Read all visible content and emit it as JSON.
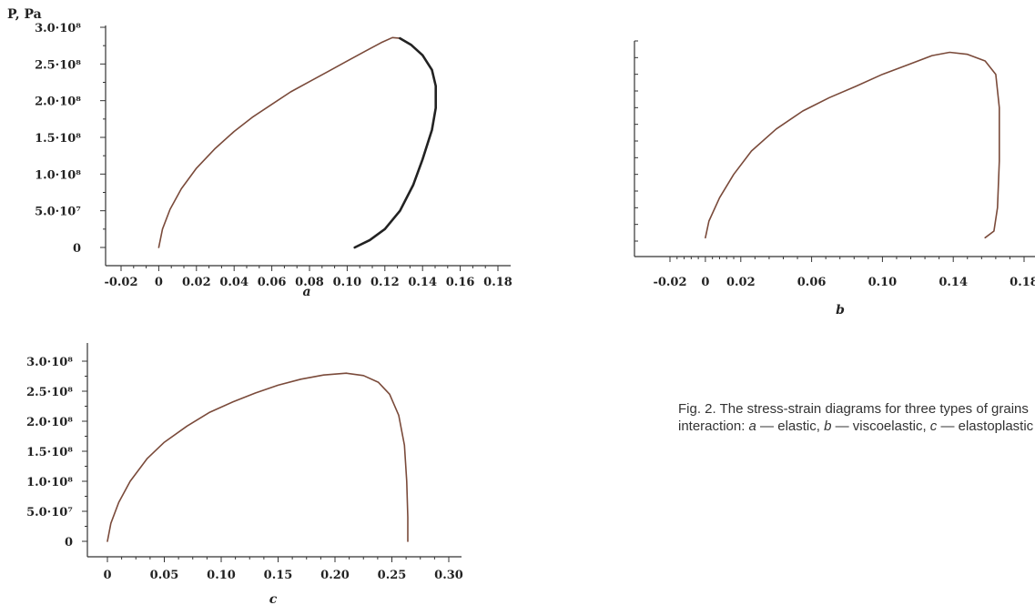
{
  "caption": {
    "line1": "Fig. 2. The stress-strain diagrams for three types of grains",
    "line2_prefix": "interaction: ",
    "a_letter": "a",
    "a_text": " — elastic, ",
    "b_letter": "b",
    "b_text": " — viscoelastic, ",
    "c_letter": "c",
    "c_text": " — elastoplastic"
  },
  "chart_data": [
    {
      "type": "line",
      "panel_label": "a",
      "ylabel": "P, Pa",
      "xlim": [
        -0.02,
        0.18
      ],
      "ylim": [
        0,
        300000000
      ],
      "xticks": [
        -0.02,
        0,
        0.02,
        0.04,
        0.06,
        0.08,
        0.1,
        0.12,
        0.14,
        0.16,
        0.18
      ],
      "xtick_labels": [
        "-0.02",
        "0",
        "0.02",
        "0.04",
        "0.06",
        "0.08",
        "0.10",
        "0.12",
        "0.14",
        "0.16",
        "0.18"
      ],
      "yticks": [
        0,
        50000000,
        100000000,
        150000000,
        200000000,
        250000000,
        300000000
      ],
      "ytick_labels": [
        "0",
        "5.0·10⁷",
        "1.0·10⁸",
        "1.5·10⁸",
        "2.0·10⁸",
        "2.5·10⁸",
        "3.0·10⁸"
      ],
      "series": [
        {
          "color": "#7a4a3a",
          "x": [
            0,
            0.002,
            0.006,
            0.012,
            0.02,
            0.03,
            0.04,
            0.05,
            0.06,
            0.07,
            0.08,
            0.09,
            0.1,
            0.11,
            0.118,
            0.124,
            0.128
          ],
          "y": [
            0,
            25000000,
            52000000,
            80000000,
            108000000,
            135000000,
            158000000,
            178000000,
            195000000,
            212000000,
            226000000,
            240000000,
            254000000,
            268000000,
            279000000,
            286000000,
            285000000
          ]
        },
        {
          "color": "#222222",
          "x": [
            0.128,
            0.134,
            0.14,
            0.145,
            0.147,
            0.147,
            0.145,
            0.14,
            0.135,
            0.128,
            0.12,
            0.112,
            0.104
          ],
          "y": [
            285000000,
            276000000,
            262000000,
            242000000,
            220000000,
            190000000,
            160000000,
            120000000,
            85000000,
            50000000,
            25000000,
            10000000,
            0
          ]
        }
      ]
    },
    {
      "type": "line",
      "panel_label": "b",
      "xlim": [
        -0.02,
        0.18
      ],
      "ylim": [
        0,
        300000000
      ],
      "xticks": [
        -0.02,
        0,
        0.02,
        0.06,
        0.1,
        0.14,
        0.18
      ],
      "xtick_labels": [
        "-0.02",
        "0",
        "0.02",
        "0.06",
        "0.10",
        "0.14",
        "0.18"
      ],
      "yticks": [],
      "ytick_labels": [],
      "series": [
        {
          "color": "#7a4a3a",
          "x": [
            0,
            0.002,
            0.008,
            0.016,
            0.026,
            0.04,
            0.055,
            0.07,
            0.085,
            0.1,
            0.115,
            0.128,
            0.138,
            0.148,
            0.158,
            0.164,
            0.166,
            0.166,
            0.165,
            0.163,
            0.158
          ],
          "y": [
            5000000,
            30000000,
            65000000,
            100000000,
            135000000,
            168000000,
            195000000,
            215000000,
            232000000,
            250000000,
            265000000,
            278000000,
            283000000,
            280000000,
            270000000,
            250000000,
            200000000,
            120000000,
            50000000,
            15000000,
            5000000
          ]
        }
      ]
    },
    {
      "type": "line",
      "panel_label": "c",
      "xlim": [
        0,
        0.3
      ],
      "ylim": [
        0,
        300000000
      ],
      "xticks": [
        0,
        0.05,
        0.1,
        0.15,
        0.2,
        0.25,
        0.3
      ],
      "xtick_labels": [
        "0",
        "0.05",
        "0.10",
        "0.15",
        "0.20",
        "0.25",
        "0.30"
      ],
      "yticks": [
        0,
        50000000,
        100000000,
        150000000,
        200000000,
        250000000,
        300000000
      ],
      "ytick_labels": [
        "0",
        "5.0·10⁷",
        "1.0·10⁸",
        "1.5·10⁸",
        "2.0·10⁸",
        "2.5·10⁸",
        "3.0·10⁸"
      ],
      "series": [
        {
          "color": "#7a4a3a",
          "x": [
            0,
            0.003,
            0.01,
            0.02,
            0.035,
            0.05,
            0.07,
            0.09,
            0.11,
            0.13,
            0.15,
            0.17,
            0.19,
            0.21,
            0.225,
            0.238,
            0.248,
            0.256,
            0.261,
            0.263,
            0.264,
            0.264
          ],
          "y": [
            0,
            30000000,
            65000000,
            100000000,
            138000000,
            165000000,
            192000000,
            215000000,
            232000000,
            247000000,
            260000000,
            270000000,
            277000000,
            280000000,
            276000000,
            265000000,
            245000000,
            210000000,
            160000000,
            100000000,
            40000000,
            0
          ]
        }
      ]
    }
  ]
}
